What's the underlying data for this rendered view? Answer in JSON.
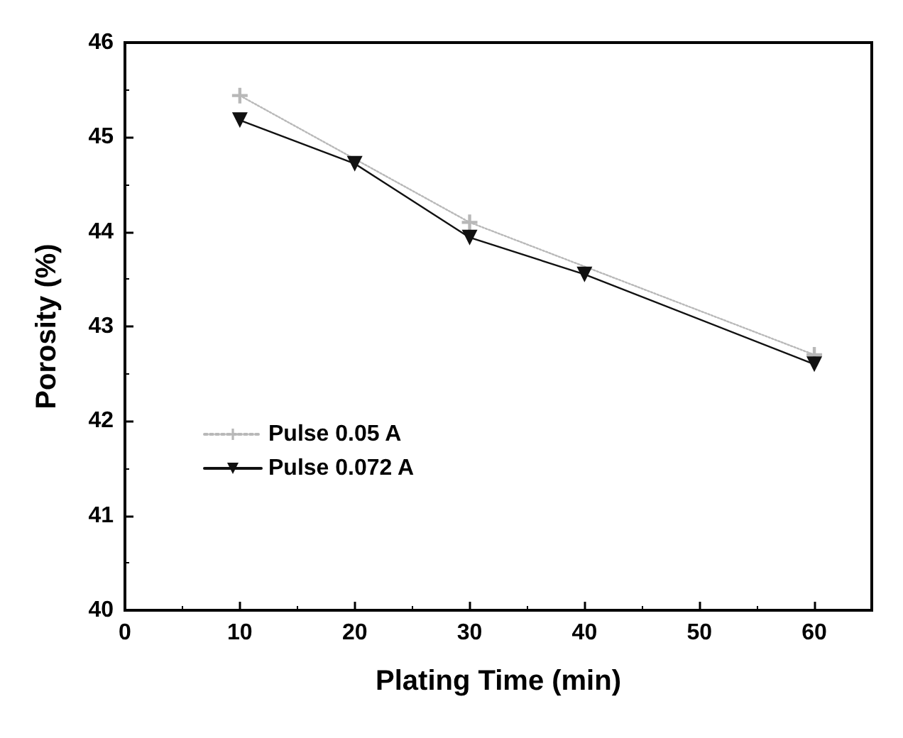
{
  "chart_data": {
    "type": "line",
    "xlabel": "Plating Time (min)",
    "ylabel": "Porosity (%)",
    "xlim": [
      0,
      65
    ],
    "xticks": [
      0,
      10,
      20,
      30,
      40,
      50,
      60
    ],
    "ylim": [
      40,
      46
    ],
    "yticks": [
      40,
      41,
      42,
      43,
      44,
      45,
      46
    ],
    "grid": false,
    "legend": "left",
    "series": [
      {
        "name": "Pulse 0.05 A",
        "color": "#b8b8b8",
        "x": [
          10,
          30,
          60
        ],
        "values": [
          45.44,
          44.1,
          42.7
        ],
        "marker": "cross",
        "line_style": "dotted"
      },
      {
        "name": "Pulse 0.072 A",
        "color": "#111111",
        "x": [
          10,
          20,
          30,
          40,
          60
        ],
        "values": [
          45.18,
          44.72,
          43.94,
          43.55,
          42.6
        ],
        "marker": "triangle",
        "line_style": "solid"
      }
    ]
  }
}
